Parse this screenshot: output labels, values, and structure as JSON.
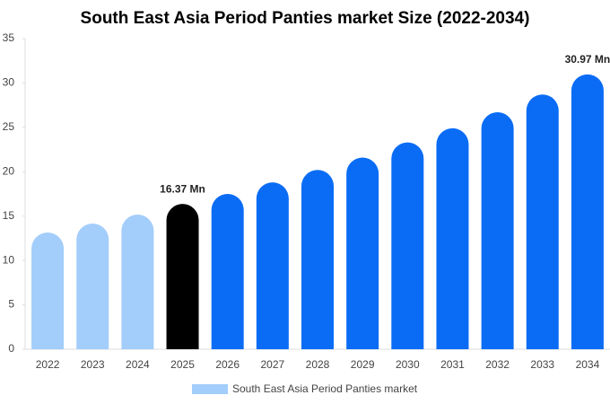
{
  "chart_data": {
    "type": "bar",
    "title": "South East Asia Period Panties market Size (2022-2034)",
    "categories": [
      "2022",
      "2023",
      "2024",
      "2025",
      "2026",
      "2027",
      "2028",
      "2029",
      "2030",
      "2031",
      "2032",
      "2033",
      "2034"
    ],
    "series": [
      {
        "name": "South East Asia Period Panties market",
        "color": "#a3cdfb",
        "values": [
          13.15,
          14.16,
          15.17,
          16.37,
          17.5,
          18.8,
          20.2,
          21.6,
          23.3,
          24.9,
          26.7,
          28.7,
          30.97
        ],
        "colors": [
          "#a3cdfb",
          "#a3cdfb",
          "#a3cdfb",
          "#000000",
          "#0a6cf5",
          "#0a6cf5",
          "#0a6cf5",
          "#0a6cf5",
          "#0a6cf5",
          "#0a6cf5",
          "#0a6cf5",
          "#0a6cf5",
          "#0a6cf5"
        ],
        "value_labels": [
          null,
          null,
          null,
          "16.37 Mn",
          null,
          null,
          null,
          null,
          null,
          null,
          null,
          null,
          "30.97 Mn"
        ]
      }
    ],
    "ylim": [
      0,
      35
    ],
    "yticks": [
      0,
      5,
      10,
      15,
      20,
      25,
      30,
      35
    ],
    "legend": "bottom"
  }
}
